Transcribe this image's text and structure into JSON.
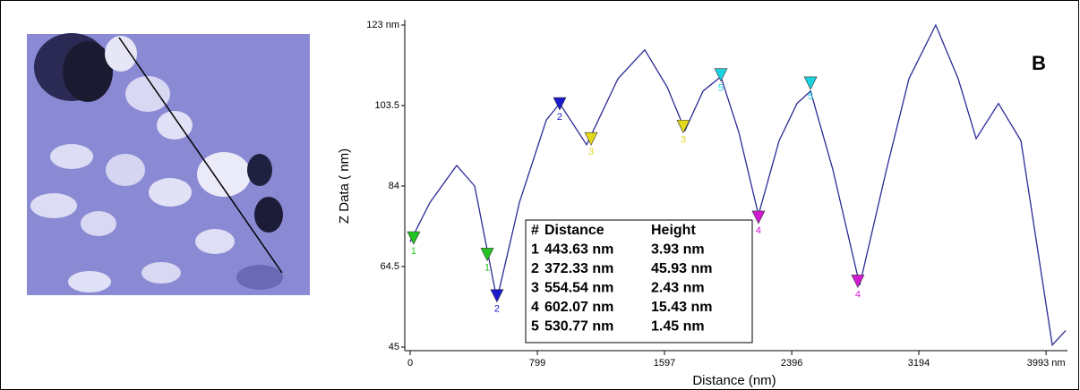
{
  "chart_data": {
    "type": "line",
    "annotation": "B",
    "x_label": "Distance (nm)",
    "y_label": "Z Data ( nm)",
    "x": [
      0,
      124,
      292,
      405,
      545,
      686,
      855,
      939,
      1108,
      1305,
      1473,
      1614,
      1726,
      1839,
      1951,
      2064,
      2187,
      2317,
      2429,
      2514,
      2654,
      2823,
      2991,
      3132,
      3300,
      3441,
      3554,
      3694,
      3835,
      4032,
      4116
    ],
    "series": [
      {
        "color": "#2a2a96",
        "values": [
          70.5,
          80,
          89,
          84,
          56.5,
          80,
          100,
          104,
          94,
          110,
          117,
          108,
          97.5,
          107,
          110.5,
          97,
          77,
          95,
          104,
          107,
          88,
          60,
          88,
          110,
          123,
          110,
          95.5,
          104,
          95,
          45.5,
          49
        ]
      }
    ],
    "xlim": [
      0,
      4116
    ],
    "ylim": [
      45,
      123
    ],
    "xticks": [
      0,
      799,
      1597,
      2396,
      3194,
      {
        "value": 3993,
        "label": "3993 nm"
      }
    ],
    "yticks": [
      45,
      64.5,
      84,
      103.5,
      {
        "value": 123,
        "label": "123 nm"
      }
    ],
    "cursors": [
      {
        "label": "1",
        "color": "#22c322",
        "x": 22,
        "y": 71
      },
      {
        "label": "1",
        "color": "#22c322",
        "x": 484,
        "y": 67
      },
      {
        "label": "2",
        "color": "#1a1acd",
        "x": 545,
        "y": 57
      },
      {
        "label": "2",
        "color": "#1a1acd",
        "x": 939,
        "y": 103.5
      },
      {
        "label": "3",
        "color": "#e3d81a",
        "x": 1136,
        "y": 95
      },
      {
        "label": "3",
        "color": "#e3d81a",
        "x": 1715,
        "y": 98
      },
      {
        "label": "4",
        "color": "#d21ad2",
        "x": 2187,
        "y": 76
      },
      {
        "label": "4",
        "color": "#d21ad2",
        "x": 2811,
        "y": 60.5
      },
      {
        "label": "5",
        "color": "#1ad2e0",
        "x": 1951,
        "y": 110.5
      },
      {
        "label": "5",
        "color": "#1ad2e0",
        "x": 2514,
        "y": 108.5
      }
    ],
    "table": {
      "header": [
        "#",
        "Distance",
        "Height"
      ],
      "rows": [
        [
          "1",
          "443.63 nm",
          "3.93 nm"
        ],
        [
          "2",
          "372.33 nm",
          "45.93  nm"
        ],
        [
          "3",
          "554.54 nm",
          "2.43  nm"
        ],
        [
          "4",
          "602.07 nm",
          "15.43  nm"
        ],
        [
          "5",
          "530.77 nm",
          "1.45  nm"
        ]
      ]
    }
  }
}
